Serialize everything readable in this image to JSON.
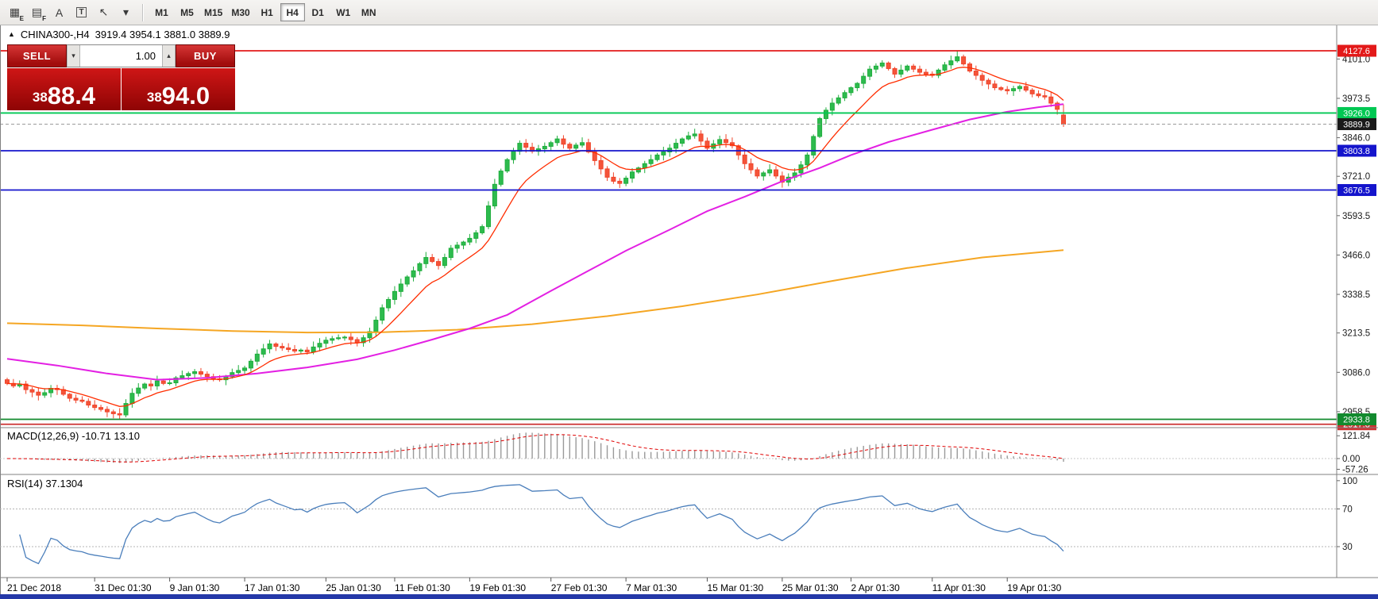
{
  "toolbar": {
    "drawing_tools": [
      {
        "name": "pattern-tool-e-icon",
        "glyph": "▦",
        "sub": "E",
        "boxed": false
      },
      {
        "name": "pattern-tool-f-icon",
        "glyph": "▤",
        "sub": "F",
        "boxed": false
      },
      {
        "name": "text-label-tool-icon",
        "glyph": "A",
        "sub": "",
        "boxed": false
      },
      {
        "name": "text-box-tool-icon",
        "glyph": "T",
        "sub": "",
        "boxed": true
      },
      {
        "name": "arrow-tool-icon",
        "glyph": "↖",
        "sub": "",
        "boxed": false
      },
      {
        "name": "arrow-tool-dropdown-caret",
        "glyph": "▾",
        "sub": "",
        "boxed": false
      }
    ],
    "timeframes": [
      "M1",
      "M5",
      "M15",
      "M30",
      "H1",
      "H4",
      "D1",
      "W1",
      "MN"
    ],
    "active_timeframe": "H4"
  },
  "chart": {
    "title_symbol": "CHINA300-,H4",
    "title_ohlc": "3919.4 3954.1 3881.0 3889.9"
  },
  "trade": {
    "sell_label": "SELL",
    "buy_label": "BUY",
    "volume": "1.00",
    "bid": "3888.4",
    "ask": "3894.0",
    "bid_prefix": "38",
    "bid_main": "88.4",
    "ask_prefix": "38",
    "ask_main": "94.0"
  },
  "macd": {
    "label": "MACD(12,26,9) -10.71 13.10",
    "params": [
      12,
      26,
      9
    ],
    "value_main": -10.71,
    "value_signal": 13.1,
    "axis_ticks": [
      {
        "label": "121.84",
        "v": 121.84
      },
      {
        "label": "0.00",
        "v": 0
      },
      {
        "label": "-57.26",
        "v": -57.26
      }
    ]
  },
  "rsi": {
    "label": "RSI(14) 37.1304",
    "period": 14,
    "value": 37.1304,
    "axis_ticks": [
      {
        "label": "100",
        "v": 100
      },
      {
        "label": "70",
        "v": 70
      },
      {
        "label": "30",
        "v": 30
      }
    ]
  },
  "chart_data": {
    "type": "candlestick",
    "symbol": "CHINA300-",
    "period": "H4",
    "current_bar": {
      "open": 3919.4,
      "high": 3954.1,
      "low": 3881.0,
      "close": 3889.9
    },
    "current_price": {
      "value": 3889.9,
      "label": "3889.9"
    },
    "y_ticks": [
      "4101.0",
      "3973.5",
      "3846.0",
      "3721.0",
      "3593.5",
      "3466.0",
      "3338.5",
      "3213.5",
      "3086.0",
      "2958.5"
    ],
    "levels": [
      {
        "value": 4127.6,
        "label": "4127.6",
        "color": "#e31919"
      },
      {
        "value": 3926.0,
        "label": "3926.0",
        "color": "#00c853"
      },
      {
        "value": 3803.8,
        "label": "3803.8",
        "color": "#1414cc"
      },
      {
        "value": 3676.5,
        "label": "3676.5",
        "color": "#1414cc"
      },
      {
        "value": 2933.8,
        "label": "2933.8",
        "color": "#128a2e"
      },
      {
        "value": 2917.8,
        "label": "2917.8",
        "color": "#cc3333"
      }
    ],
    "x_labels": [
      {
        "label": "21 Dec 2018",
        "i": 0
      },
      {
        "label": "31 Dec 01:30",
        "i": 14
      },
      {
        "label": "9 Jan 01:30",
        "i": 26
      },
      {
        "label": "17 Jan 01:30",
        "i": 38
      },
      {
        "label": "25 Jan 01:30",
        "i": 51
      },
      {
        "label": "11 Feb 01:30",
        "i": 62
      },
      {
        "label": "19 Feb 01:30",
        "i": 74
      },
      {
        "label": "27 Feb 01:30",
        "i": 87
      },
      {
        "label": "7 Mar 01:30",
        "i": 99
      },
      {
        "label": "15 Mar 01:30",
        "i": 112
      },
      {
        "label": "25 Mar 01:30",
        "i": 124
      },
      {
        "label": "2 Apr 01:30",
        "i": 135
      },
      {
        "label": "11 Apr 01:30",
        "i": 148
      },
      {
        "label": "19 Apr 01:30",
        "i": 160
      }
    ],
    "closes": [
      3050,
      3042,
      3048,
      3030,
      3022,
      3012,
      3020,
      3034,
      3030,
      3015,
      3002,
      2996,
      2992,
      2980,
      2972,
      2966,
      2958,
      2952,
      2948,
      2985,
      3018,
      3035,
      3048,
      3042,
      3058,
      3050,
      3052,
      3068,
      3075,
      3082,
      3088,
      3080,
      3072,
      3065,
      3062,
      3072,
      3085,
      3092,
      3100,
      3122,
      3145,
      3162,
      3178,
      3170,
      3165,
      3160,
      3155,
      3158,
      3152,
      3168,
      3180,
      3190,
      3195,
      3198,
      3200,
      3192,
      3182,
      3198,
      3218,
      3255,
      3295,
      3322,
      3348,
      3372,
      3395,
      3415,
      3438,
      3458,
      3445,
      3432,
      3458,
      3488,
      3498,
      3508,
      3520,
      3538,
      3558,
      3625,
      3695,
      3738,
      3775,
      3802,
      3828,
      3815,
      3802,
      3810,
      3818,
      3830,
      3842,
      3825,
      3812,
      3822,
      3830,
      3800,
      3772,
      3745,
      3718,
      3705,
      3698,
      3715,
      3735,
      3748,
      3762,
      3775,
      3790,
      3800,
      3812,
      3828,
      3842,
      3852,
      3858,
      3835,
      3812,
      3826,
      3840,
      3830,
      3820,
      3790,
      3762,
      3742,
      3722,
      3732,
      3742,
      3722,
      3702,
      3718,
      3732,
      3758,
      3790,
      3850,
      3908,
      3935,
      3958,
      3975,
      3992,
      4008,
      4022,
      4045,
      4068,
      4078,
      4088,
      4070,
      4052,
      4065,
      4078,
      4068,
      4058,
      4052,
      4048,
      4065,
      4082,
      4095,
      4108,
      4085,
      4062,
      4048,
      4032,
      4020,
      4008,
      4002,
      3998,
      4005,
      4012,
      4000,
      3988,
      3982,
      3978,
      3958,
      3938,
      3890
    ],
    "overlays": {
      "ma_fast": {
        "type": "ema",
        "period": 10,
        "color": "#ff2d00"
      },
      "ma_medium": {
        "color": "#e320e3",
        "points": [
          [
            0,
            3130
          ],
          [
            8,
            3108
          ],
          [
            16,
            3082
          ],
          [
            24,
            3062
          ],
          [
            32,
            3068
          ],
          [
            40,
            3082
          ],
          [
            48,
            3102
          ],
          [
            56,
            3128
          ],
          [
            62,
            3158
          ],
          [
            68,
            3192
          ],
          [
            74,
            3228
          ],
          [
            80,
            3272
          ],
          [
            87,
            3350
          ],
          [
            93,
            3415
          ],
          [
            99,
            3480
          ],
          [
            106,
            3548
          ],
          [
            112,
            3608
          ],
          [
            118,
            3655
          ],
          [
            124,
            3705
          ],
          [
            130,
            3748
          ],
          [
            135,
            3790
          ],
          [
            141,
            3832
          ],
          [
            148,
            3872
          ],
          [
            154,
            3905
          ],
          [
            160,
            3930
          ],
          [
            165,
            3945
          ],
          [
            169,
            3955
          ]
        ]
      },
      "ma_slow": {
        "color": "#f5a623",
        "points": [
          [
            0,
            3245
          ],
          [
            12,
            3238
          ],
          [
            24,
            3228
          ],
          [
            36,
            3220
          ],
          [
            48,
            3215
          ],
          [
            60,
            3216
          ],
          [
            72,
            3224
          ],
          [
            84,
            3242
          ],
          [
            96,
            3268
          ],
          [
            108,
            3300
          ],
          [
            120,
            3338
          ],
          [
            132,
            3382
          ],
          [
            144,
            3424
          ],
          [
            156,
            3458
          ],
          [
            169,
            3482
          ]
        ]
      }
    },
    "colors": {
      "background": "#ffffff",
      "candle_up": "#2dbb4e",
      "candle_up_border": "#1fae3d",
      "candle_down": "#f4543a",
      "candle_down_border": "#f0452b",
      "current_price_badge": "#1a1a1a",
      "current_price_line": "#9b9b9b",
      "axis_line": "#808080",
      "macd_histogram": "#9a9a9a",
      "macd_signal": "#e00000",
      "rsi_line": "#4a7ebb",
      "bottom_strip": "#2438a8"
    }
  }
}
